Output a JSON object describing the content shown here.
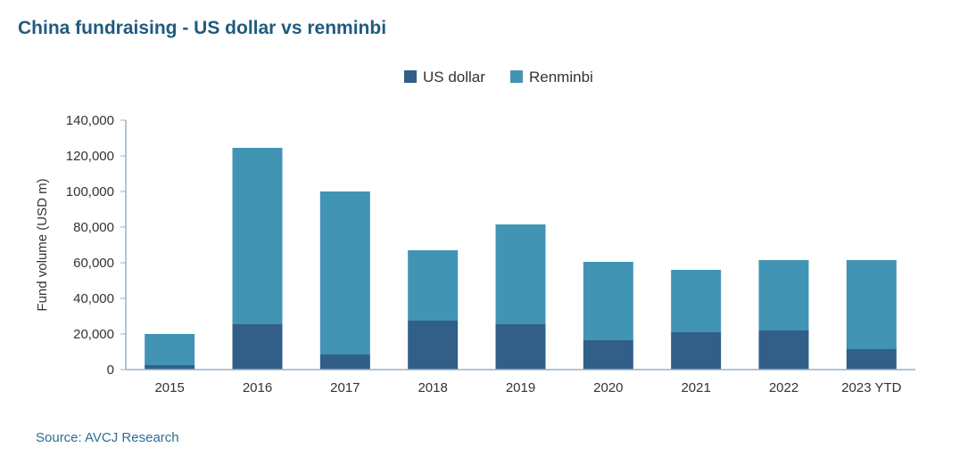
{
  "title": "China fundraising - US dollar vs renminbi",
  "source": "Source: AVCJ Research",
  "colors": {
    "usd": "#315f88",
    "rmb": "#4294b5",
    "axis": "#9ab0c4",
    "title": "#1f5b80"
  },
  "chart_data": {
    "type": "bar",
    "stacked": true,
    "categories": [
      "2015",
      "2016",
      "2017",
      "2018",
      "2019",
      "2020",
      "2021",
      "2022",
      "2023 YTD"
    ],
    "series": [
      {
        "name": "US dollar",
        "values": [
          2500,
          25500,
          8500,
          27500,
          25500,
          16500,
          21000,
          22000,
          11500
        ]
      },
      {
        "name": "Renminbi",
        "values": [
          17500,
          99000,
          91500,
          39500,
          56000,
          44000,
          35000,
          39500,
          50000
        ]
      }
    ],
    "title": "China fundraising - US dollar vs renminbi",
    "xlabel": "",
    "ylabel": "Fund volume (USD m)",
    "ylim": [
      0,
      140000
    ],
    "yticks": [
      0,
      20000,
      40000,
      60000,
      80000,
      100000,
      120000,
      140000
    ],
    "ytick_labels": [
      "0",
      "20,000",
      "40,000",
      "60,000",
      "80,000",
      "100,000",
      "120,000",
      "140,000"
    ],
    "legend_position": "top-center",
    "grid": false
  }
}
